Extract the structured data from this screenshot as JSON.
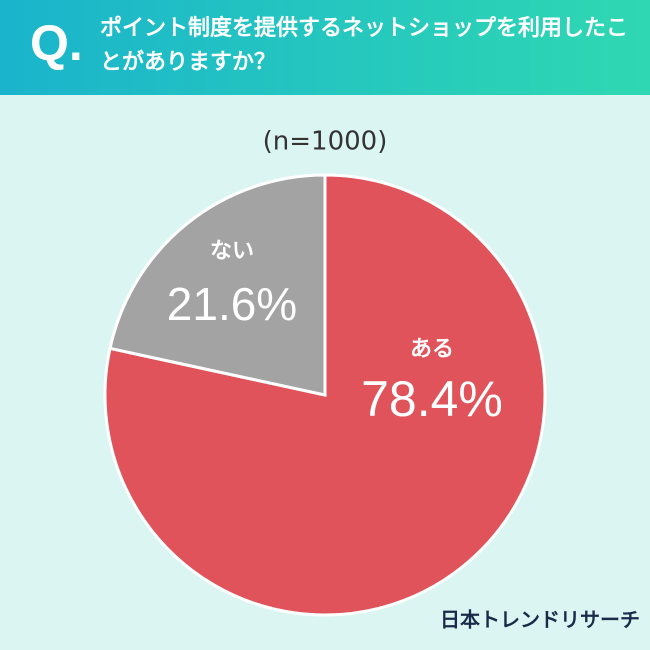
{
  "chart_data": {
    "type": "pie",
    "question_mark": "Q.",
    "title": "ポイント制度を提供するネットショップを利用したことがありますか？",
    "subtitle": "(n=1000)",
    "categories": [
      "ある",
      "ない"
    ],
    "values": [
      78.4,
      21.6
    ],
    "value_labels": [
      "78.4%",
      "21.6%"
    ],
    "colors": [
      "#e0535a",
      "#a3a3a3"
    ],
    "source": "日本トレンドリサーチ"
  }
}
